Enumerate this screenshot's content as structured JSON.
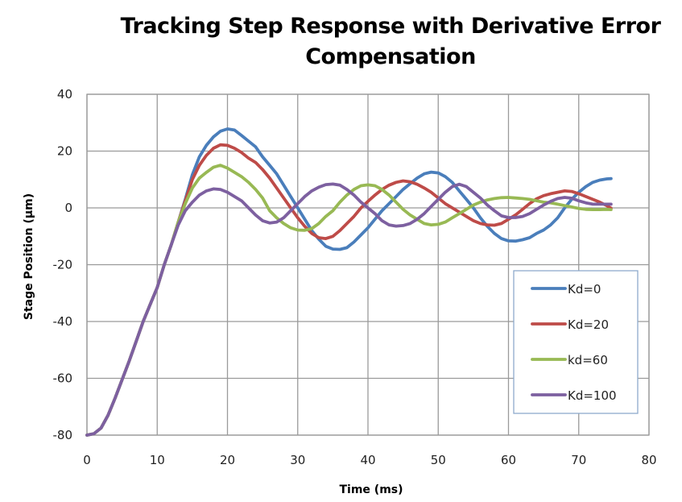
{
  "chart_data": {
    "type": "line",
    "title": "Tracking Step Response with Derivative Error Compensation",
    "title_lines": [
      "Tracking Step Response with Derivative Error",
      "Compensation"
    ],
    "xlabel": "Time (ms)",
    "ylabel": "Stage Position (µm)",
    "xlim": [
      0,
      80
    ],
    "ylim": [
      -80,
      40
    ],
    "xticks": [
      0,
      10,
      20,
      30,
      40,
      50,
      60,
      70,
      80
    ],
    "yticks": [
      -80,
      -60,
      -40,
      -20,
      0,
      20,
      40
    ],
    "xtick_labels": [
      "0",
      "10",
      "20",
      "30",
      "40",
      "50",
      "60",
      "70",
      "80"
    ],
    "ytick_labels": [
      "-80",
      "-60",
      "-40",
      "-20",
      "0",
      "20",
      "40"
    ],
    "grid": true,
    "legend_position": "right",
    "series": [
      {
        "name": "Kd=0",
        "color": "#4A7EBB",
        "points": [
          [
            0,
            -80
          ],
          [
            1,
            -79.5
          ],
          [
            2,
            -77.5
          ],
          [
            3,
            -73
          ],
          [
            4,
            -67
          ],
          [
            5,
            -60.5
          ],
          [
            6,
            -54
          ],
          [
            7,
            -47
          ],
          [
            8,
            -40
          ],
          [
            9,
            -34
          ],
          [
            10,
            -28
          ],
          [
            11,
            -20
          ],
          [
            12,
            -13
          ],
          [
            13,
            -5
          ],
          [
            14,
            3
          ],
          [
            15,
            11.7
          ],
          [
            16,
            18
          ],
          [
            17,
            22
          ],
          [
            18,
            25
          ],
          [
            19,
            27
          ],
          [
            20,
            27.8
          ],
          [
            21,
            27.4
          ],
          [
            22,
            25.5
          ],
          [
            23,
            23.5
          ],
          [
            24,
            21.5
          ],
          [
            25,
            18
          ],
          [
            26,
            15
          ],
          [
            27,
            12
          ],
          [
            28,
            8
          ],
          [
            29,
            4
          ],
          [
            30,
            0
          ],
          [
            31,
            -4
          ],
          [
            32,
            -8
          ],
          [
            33,
            -11
          ],
          [
            34,
            -13.5
          ],
          [
            35,
            -14.5
          ],
          [
            36,
            -14.6
          ],
          [
            37,
            -14
          ],
          [
            38,
            -12
          ],
          [
            39,
            -9.5
          ],
          [
            40,
            -7
          ],
          [
            41,
            -4
          ],
          [
            42,
            -1
          ],
          [
            43,
            1.5
          ],
          [
            44,
            4
          ],
          [
            45,
            6.5
          ],
          [
            46,
            8.5
          ],
          [
            47,
            10.5
          ],
          [
            48,
            12
          ],
          [
            49,
            12.6
          ],
          [
            50,
            12.3
          ],
          [
            51,
            11
          ],
          [
            52,
            9
          ],
          [
            53,
            6
          ],
          [
            54,
            3
          ],
          [
            55,
            0
          ],
          [
            56,
            -3.5
          ],
          [
            57,
            -6.5
          ],
          [
            58,
            -9
          ],
          [
            59,
            -10.8
          ],
          [
            60,
            -11.6
          ],
          [
            61,
            -11.7
          ],
          [
            62,
            -11.2
          ],
          [
            63,
            -10.5
          ],
          [
            64,
            -9
          ],
          [
            65,
            -7.8
          ],
          [
            66,
            -6
          ],
          [
            67,
            -3.5
          ],
          [
            68,
            0
          ],
          [
            69,
            3
          ],
          [
            70,
            5.5
          ],
          [
            71,
            7.5
          ],
          [
            72,
            9
          ],
          [
            73,
            9.8
          ],
          [
            74,
            10.2
          ],
          [
            74.6,
            10.3
          ]
        ]
      },
      {
        "name": "Kd=20",
        "color": "#BE4B48",
        "points": [
          [
            0,
            -80
          ],
          [
            1,
            -79.5
          ],
          [
            2,
            -77.5
          ],
          [
            3,
            -73
          ],
          [
            4,
            -67
          ],
          [
            5,
            -60.5
          ],
          [
            6,
            -54
          ],
          [
            7,
            -47
          ],
          [
            8,
            -40
          ],
          [
            9,
            -34
          ],
          [
            10,
            -28
          ],
          [
            11,
            -20
          ],
          [
            12,
            -13
          ],
          [
            13,
            -5
          ],
          [
            14,
            2.5
          ],
          [
            15,
            10
          ],
          [
            16,
            15
          ],
          [
            17,
            18.5
          ],
          [
            18,
            21
          ],
          [
            19,
            22.2
          ],
          [
            20,
            22
          ],
          [
            21,
            21
          ],
          [
            22,
            19.5
          ],
          [
            23,
            17.5
          ],
          [
            24,
            16
          ],
          [
            25,
            13.5
          ],
          [
            26,
            10.5
          ],
          [
            27,
            7
          ],
          [
            28,
            3.5
          ],
          [
            29,
            0
          ],
          [
            30,
            -3.5
          ],
          [
            31,
            -6.5
          ],
          [
            32,
            -9
          ],
          [
            33,
            -10.5
          ],
          [
            34,
            -10.8
          ],
          [
            35,
            -10
          ],
          [
            36,
            -8
          ],
          [
            37,
            -5.5
          ],
          [
            38,
            -3
          ],
          [
            39,
            0
          ],
          [
            40,
            2.3
          ],
          [
            41,
            4.5
          ],
          [
            42,
            6.5
          ],
          [
            43,
            8
          ],
          [
            44,
            9
          ],
          [
            45,
            9.5
          ],
          [
            46,
            9.2
          ],
          [
            47,
            8.3
          ],
          [
            48,
            7
          ],
          [
            49,
            5.5
          ],
          [
            50,
            3.5
          ],
          [
            51,
            1.5
          ],
          [
            52,
            0
          ],
          [
            53,
            -1.5
          ],
          [
            54,
            -3
          ],
          [
            55,
            -4.5
          ],
          [
            56,
            -5.5
          ],
          [
            57,
            -6
          ],
          [
            58,
            -6.1
          ],
          [
            59,
            -5.5
          ],
          [
            60,
            -4
          ],
          [
            61,
            -2.5
          ],
          [
            62,
            -0.5
          ],
          [
            63,
            1.5
          ],
          [
            64,
            3.2
          ],
          [
            65,
            4.3
          ],
          [
            66,
            5
          ],
          [
            67,
            5.5
          ],
          [
            68,
            6
          ],
          [
            69,
            5.8
          ],
          [
            70,
            5
          ],
          [
            71,
            4
          ],
          [
            72,
            3
          ],
          [
            73,
            2
          ],
          [
            74,
            0.8
          ],
          [
            74.6,
            -0.1
          ]
        ]
      },
      {
        "name": "kd=60",
        "color": "#98B954",
        "points": [
          [
            0,
            -80
          ],
          [
            1,
            -79.5
          ],
          [
            2,
            -77.5
          ],
          [
            3,
            -73
          ],
          [
            4,
            -67
          ],
          [
            5,
            -60.5
          ],
          [
            6,
            -54
          ],
          [
            7,
            -47
          ],
          [
            8,
            -40
          ],
          [
            9,
            -34
          ],
          [
            10,
            -28
          ],
          [
            11,
            -20
          ],
          [
            12,
            -13
          ],
          [
            13,
            -5
          ],
          [
            14,
            1.5
          ],
          [
            15,
            7
          ],
          [
            16,
            10.5
          ],
          [
            17,
            12.5
          ],
          [
            18,
            14.3
          ],
          [
            19,
            15
          ],
          [
            20,
            14
          ],
          [
            21,
            12.5
          ],
          [
            22,
            11
          ],
          [
            23,
            9
          ],
          [
            24,
            6.5
          ],
          [
            25,
            3.5
          ],
          [
            26,
            -1
          ],
          [
            27,
            -3.5
          ],
          [
            28,
            -5.5
          ],
          [
            29,
            -7
          ],
          [
            30,
            -7.8
          ],
          [
            31,
            -7.9
          ],
          [
            32,
            -7.3
          ],
          [
            33,
            -5.5
          ],
          [
            34,
            -3
          ],
          [
            35,
            -1
          ],
          [
            36,
            2
          ],
          [
            37,
            4.5
          ],
          [
            38,
            6.5
          ],
          [
            39,
            7.8
          ],
          [
            40,
            8.1
          ],
          [
            41,
            7.8
          ],
          [
            42,
            6.5
          ],
          [
            43,
            4.5
          ],
          [
            44,
            2
          ],
          [
            45,
            -0.5
          ],
          [
            46,
            -2.5
          ],
          [
            47,
            -4
          ],
          [
            48,
            -5.5
          ],
          [
            49,
            -6
          ],
          [
            50,
            -5.8
          ],
          [
            51,
            -5
          ],
          [
            52,
            -3.5
          ],
          [
            53,
            -2
          ],
          [
            54,
            -0.5
          ],
          [
            55,
            1
          ],
          [
            56,
            2
          ],
          [
            57,
            2.8
          ],
          [
            58,
            3.3
          ],
          [
            59,
            3.6
          ],
          [
            60,
            3.7
          ],
          [
            61,
            3.5
          ],
          [
            62,
            3.3
          ],
          [
            63,
            3
          ],
          [
            64,
            2.5
          ],
          [
            65,
            2
          ],
          [
            66,
            1.8
          ],
          [
            67,
            1.3
          ],
          [
            68,
            0.8
          ],
          [
            69,
            0.3
          ],
          [
            70,
            -0.2
          ],
          [
            71,
            -0.5
          ],
          [
            72,
            -0.6
          ],
          [
            73,
            -0.6
          ],
          [
            74,
            -0.5
          ],
          [
            74.6,
            -0.6
          ]
        ]
      },
      {
        "name": "Kd=100",
        "color": "#7D60A0",
        "points": [
          [
            0,
            -80
          ],
          [
            1,
            -79.5
          ],
          [
            2,
            -77.5
          ],
          [
            3,
            -73
          ],
          [
            4,
            -67
          ],
          [
            5,
            -60.5
          ],
          [
            6,
            -54
          ],
          [
            7,
            -47
          ],
          [
            8,
            -40
          ],
          [
            9,
            -34
          ],
          [
            10,
            -28
          ],
          [
            11,
            -20
          ],
          [
            12,
            -13
          ],
          [
            13,
            -6
          ],
          [
            14,
            -1
          ],
          [
            15,
            2
          ],
          [
            16,
            4.5
          ],
          [
            17,
            6
          ],
          [
            18,
            6.7
          ],
          [
            19,
            6.5
          ],
          [
            20,
            5.5
          ],
          [
            21,
            4
          ],
          [
            22,
            2.5
          ],
          [
            23,
            0
          ],
          [
            24,
            -2.5
          ],
          [
            25,
            -4.5
          ],
          [
            26,
            -5.3
          ],
          [
            27,
            -5
          ],
          [
            28,
            -3.5
          ],
          [
            29,
            -1
          ],
          [
            30,
            1.5
          ],
          [
            31,
            4
          ],
          [
            32,
            6
          ],
          [
            33,
            7.3
          ],
          [
            34,
            8.2
          ],
          [
            35,
            8.4
          ],
          [
            36,
            8
          ],
          [
            37,
            6.5
          ],
          [
            38,
            4.5
          ],
          [
            39,
            2
          ],
          [
            40,
            0
          ],
          [
            41,
            -2
          ],
          [
            42,
            -4.5
          ],
          [
            43,
            -6
          ],
          [
            44,
            -6.4
          ],
          [
            45,
            -6.2
          ],
          [
            46,
            -5.5
          ],
          [
            47,
            -4
          ],
          [
            48,
            -2
          ],
          [
            49,
            0.5
          ],
          [
            50,
            3
          ],
          [
            51,
            5.5
          ],
          [
            52,
            7.5
          ],
          [
            53,
            8.3
          ],
          [
            54,
            7.5
          ],
          [
            55,
            5.5
          ],
          [
            56,
            3.5
          ],
          [
            57,
            1
          ],
          [
            58,
            -1
          ],
          [
            59,
            -2.8
          ],
          [
            60,
            -3.4
          ],
          [
            61,
            -3.4
          ],
          [
            62,
            -3
          ],
          [
            63,
            -2
          ],
          [
            64,
            -0.5
          ],
          [
            65,
            1
          ],
          [
            66,
            2.3
          ],
          [
            67,
            3.3
          ],
          [
            68,
            3.7
          ],
          [
            69,
            3.4
          ],
          [
            70,
            2.5
          ],
          [
            71,
            1.8
          ],
          [
            72,
            1.3
          ],
          [
            73,
            1.3
          ],
          [
            74,
            1.3
          ],
          [
            74.6,
            1.3
          ]
        ]
      }
    ]
  }
}
